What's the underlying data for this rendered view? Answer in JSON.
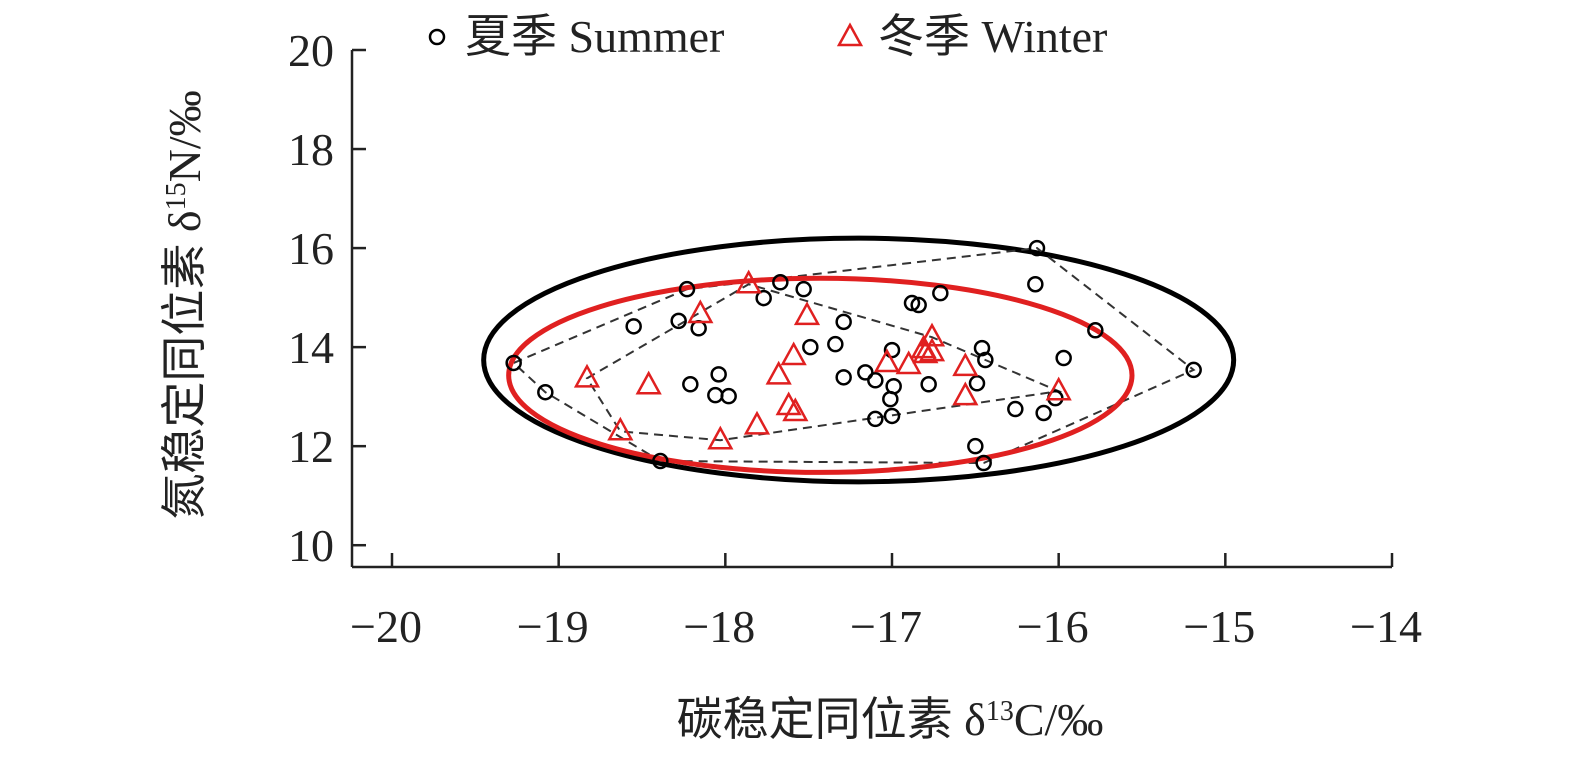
{
  "chart_data": {
    "type": "scatter",
    "xlabel": [
      "碳稳定同位素 δ",
      "13",
      "C/‰"
    ],
    "ylabel": [
      "氮稳定同位素 δ",
      "15",
      "N/‰"
    ],
    "xlim": [
      -20.24,
      -14
    ],
    "ylim": [
      9.56,
      20
    ],
    "xticks": [
      {
        "value": -20,
        "label": "−20"
      },
      {
        "value": -19,
        "label": "−19"
      },
      {
        "value": -18,
        "label": "−18"
      },
      {
        "value": -17,
        "label": "−17"
      },
      {
        "value": -16,
        "label": "−16"
      },
      {
        "value": -15,
        "label": "−15"
      },
      {
        "value": -14,
        "label": "−14"
      }
    ],
    "yticks": [
      10,
      12,
      14,
      16,
      18,
      20
    ],
    "legend": "top",
    "series": [
      {
        "name": "夏季 Summer",
        "color": "#000000",
        "marker": "circle",
        "x": [
          -19.27,
          -19.08,
          -18.55,
          -18.28,
          -18.23,
          -18.16,
          -18.21,
          -18.04,
          -18.06,
          -17.98,
          -18.39,
          -17.77,
          -17.67,
          -17.53,
          -17.49,
          -17.34,
          -17.29,
          -17.29,
          -17.16,
          -17.1,
          -17.1,
          -17.0,
          -16.99,
          -17.01,
          -17.0,
          -16.88,
          -16.84,
          -16.71,
          -16.78,
          -16.46,
          -16.44,
          -16.49,
          -16.5,
          -16.45,
          -16.26,
          -16.09,
          -16.02,
          -16.13,
          -16.14,
          -15.97,
          -15.78,
          -15.19
        ],
        "y": [
          13.68,
          13.09,
          14.42,
          14.53,
          15.17,
          14.38,
          13.25,
          13.45,
          13.03,
          13.01,
          11.7,
          14.99,
          15.31,
          15.17,
          14.0,
          14.06,
          14.51,
          13.39,
          13.49,
          13.33,
          12.55,
          13.94,
          13.21,
          12.95,
          12.61,
          14.89,
          14.85,
          15.09,
          13.25,
          13.98,
          13.74,
          13.27,
          12.0,
          11.66,
          12.75,
          12.67,
          12.97,
          16.0,
          15.27,
          13.78,
          14.34,
          13.54
        ],
        "ellipse": {
          "cx": -17.2,
          "cy": 13.74,
          "rx": 2.25,
          "ry": 2.46
        }
      },
      {
        "name": "冬季 Winter",
        "color": "#e02020",
        "marker": "triangle",
        "x": [
          -18.83,
          -18.63,
          -18.46,
          -18.15,
          -18.03,
          -17.86,
          -17.81,
          -17.68,
          -17.59,
          -17.62,
          -17.58,
          -17.51,
          -17.03,
          -16.9,
          -16.81,
          -16.8,
          -16.76,
          -16.76,
          -16.56,
          -16.56,
          -16.0
        ],
        "y": [
          13.37,
          12.3,
          13.23,
          14.67,
          12.12,
          15.27,
          12.42,
          13.43,
          13.82,
          12.81,
          12.69,
          14.63,
          13.68,
          13.64,
          13.96,
          13.86,
          14.2,
          13.9,
          13.6,
          13.01,
          13.11
        ],
        "ellipse": {
          "cx": -17.43,
          "cy": 13.43,
          "rx": 1.87,
          "ry": 1.96
        }
      }
    ]
  }
}
